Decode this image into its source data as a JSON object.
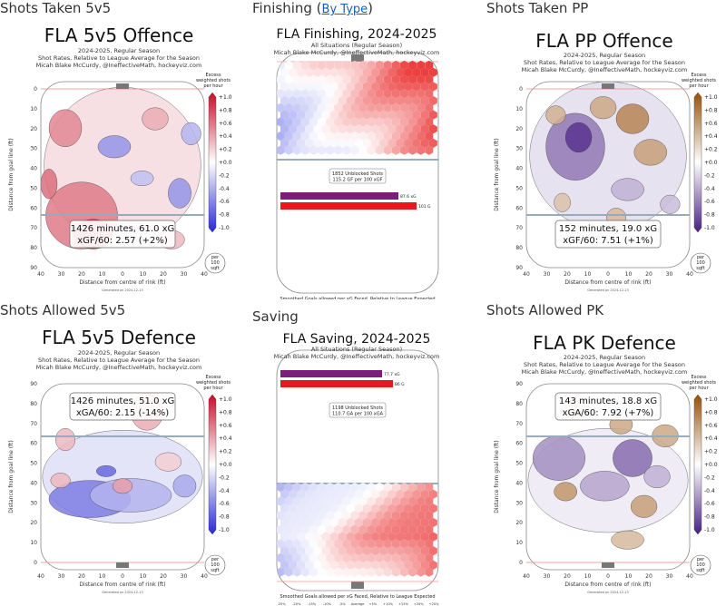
{
  "panels": [
    {
      "kind": "rink",
      "header": "Shots Taken 5v5",
      "big": "FLA 5v5 Offence",
      "sub": [
        "2024-2025, Regular Season",
        "Shot Rates, Relative to League Average for the Season",
        "Micah Blake McCurdy, @IneffectiveMath, hockeyviz.com"
      ],
      "stat1": "1426 minutes, 61.0 xG",
      "stat2": "xGF/60: 2.57 (+2%)",
      "palette": "redblue",
      "goal_at": "top",
      "box_at": "bottom"
    },
    {
      "kind": "hex",
      "header": "Finishing",
      "link": "By Type",
      "big": "FLA Finishing, 2024-2025",
      "sub": [
        "All Situations (Regular Season)",
        "Micah Blake McCurdy, @IneffectiveMath, hockeyviz.com"
      ],
      "box1": "1852 Unblocked Shots",
      "box2": "115.2 GF per 100 xGF",
      "bar1": "87.6 xG",
      "bar2": "101 G",
      "bars_at": "bottom",
      "goal_at": "top"
    },
    {
      "kind": "rink",
      "header": "Shots Taken PP",
      "big": "FLA PP Offence",
      "sub": [
        "2024-2025, Regular Season",
        "Shot Rates, Relative to League Average for the Season",
        "Micah Blake McCurdy, @IneffectiveMath, hockeyviz.com"
      ],
      "stat1": "152 minutes, 19.0 xG",
      "stat2": "xGF/60: 7.51 (+1%)",
      "palette": "purplebrown",
      "goal_at": "top",
      "box_at": "bottom"
    },
    {
      "kind": "rink",
      "header": "Shots Allowed 5v5",
      "big": "FLA 5v5 Defence",
      "sub": [
        "2024-2025, Regular Season",
        "Shot Rates, Relative to League Average for the Season",
        "Micah Blake McCurdy, @IneffectiveMath, hockeyviz.com"
      ],
      "stat1": "1426 minutes, 51.0 xG",
      "stat2": "xGA/60: 2.15 (-14%)",
      "palette": "redblue",
      "goal_at": "bottom",
      "box_at": "top"
    },
    {
      "kind": "hex",
      "header": "Saving",
      "big": "FLA Saving, 2024-2025",
      "sub": [
        "All Situations (Regular Season)",
        "Micah Blake McCurdy, @IneffectiveMath, hockeyviz.com"
      ],
      "box1": "1198 Unblocked Shots",
      "box2": "110.7 GA per 100 xGA",
      "bar1": "77.7 xG",
      "bar2": "86 G",
      "bars_at": "top",
      "goal_at": "bottom"
    },
    {
      "kind": "rink",
      "header": "Shots Allowed PK",
      "big": "FLA PK Defence",
      "sub": [
        "2024-2025, Regular Season",
        "Shot Rates, Relative to League Average for the Season",
        "Micah Blake McCurdy, @IneffectiveMath, hockeyviz.com"
      ],
      "stat1": "143 minutes, 18.8 xG",
      "stat2": "xGA/60: 7.92 (+7%)",
      "palette": "purplebrown",
      "goal_at": "bottom",
      "box_at": "top"
    }
  ],
  "rink_axes": {
    "ylabel": "Distance from goal line (ft)",
    "xlabel": "Distance from centre of rink (ft)",
    "yticks_offence": [
      0,
      10,
      20,
      30,
      40,
      50,
      60,
      70,
      80,
      90
    ],
    "xticks": [
      40,
      30,
      20,
      10,
      0,
      10,
      20,
      30,
      40
    ],
    "generated": "Generated on 2024-12-13",
    "colorbar_title": [
      "Excess",
      "weighted shots",
      "per hour"
    ],
    "colorbar_ticks": [
      "+1.0",
      "+0.8",
      "+0.6",
      "+0.4",
      "+0.2",
      "+0.0",
      "-0.2",
      "-0.4",
      "-0.6",
      "-0.8",
      "-1.0"
    ],
    "unit": [
      "per",
      "100",
      "sqft"
    ]
  },
  "hex_legend": {
    "title_finishing": "Smoothed Goals allowed per xG Faced, Relative to League Expected",
    "labels": [
      "-25%",
      "-20%",
      "-15%",
      "-10%",
      "-5%",
      "Average",
      "+5%",
      "+10%",
      "+15%",
      "+20%",
      "+25%"
    ],
    "generated": "Generated on 2024-12-13"
  },
  "colors": {
    "red": "#d7191c",
    "blue": "#2c3fe0",
    "purple": "#542788",
    "brown": "#b35806",
    "xg_bar": "#7b1e7a",
    "g_bar": "#e8191a"
  }
}
